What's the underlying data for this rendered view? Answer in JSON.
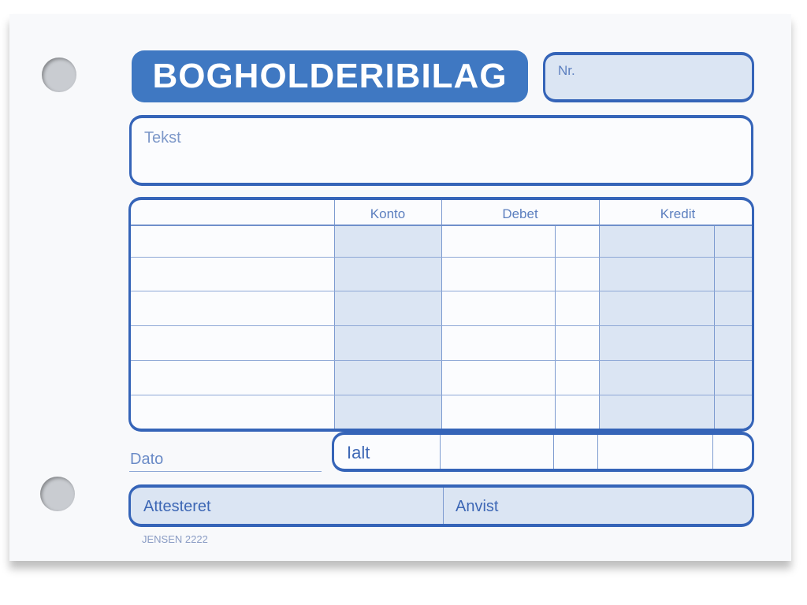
{
  "form": {
    "title": "BOGHOLDERIBILAG",
    "nr_label": "Nr.",
    "tekst_label": "Tekst",
    "columns": [
      "Konto",
      "Debet",
      "Kredit"
    ],
    "row_count": 6,
    "total_label": "Ialt",
    "dato_label": "Dato",
    "attesteret_label": "Attesteret",
    "anvist_label": "Anvist",
    "footer_code": "JENSEN 2222",
    "colors": {
      "accent": "#3f78c2",
      "line": "#3564b8",
      "shade": "#dbe5f3"
    }
  }
}
